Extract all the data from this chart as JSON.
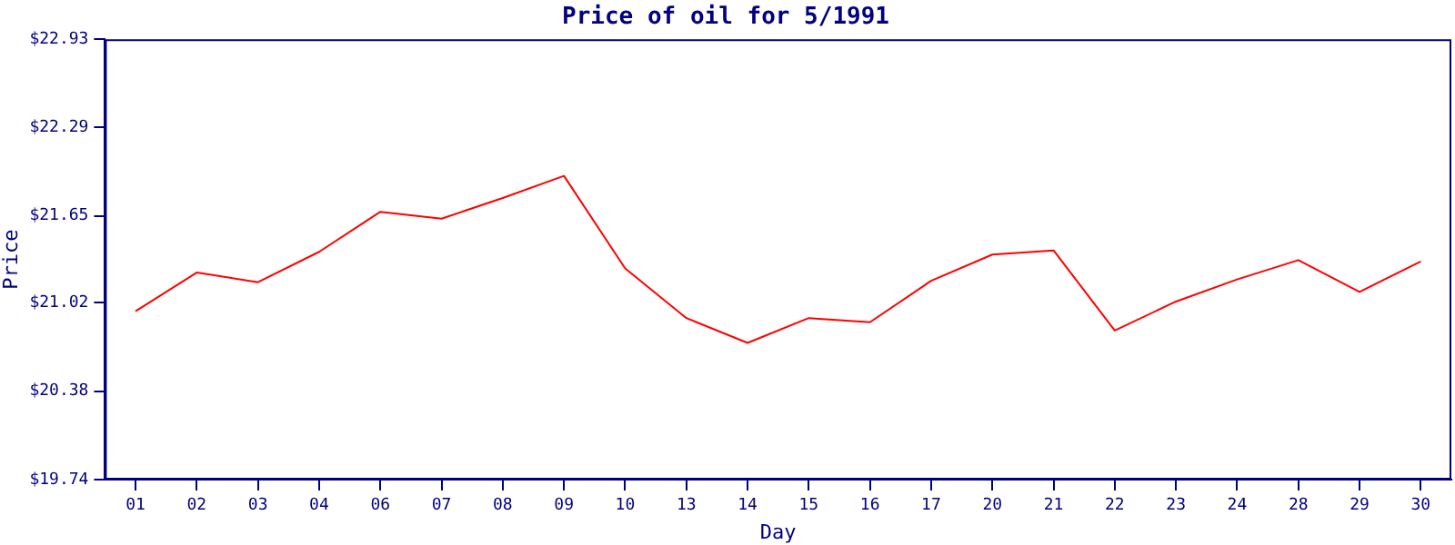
{
  "chart_data": {
    "type": "line",
    "title": "Price of oil for 5/1991",
    "xlabel": "Day",
    "ylabel": "Price",
    "categories": [
      "01",
      "02",
      "03",
      "04",
      "06",
      "07",
      "08",
      "09",
      "10",
      "13",
      "14",
      "15",
      "16",
      "17",
      "20",
      "21",
      "22",
      "23",
      "24",
      "28",
      "29",
      "30"
    ],
    "series": [
      {
        "color": "#ff0000",
        "values": [
          20.96,
          21.24,
          21.17,
          21.39,
          21.68,
          21.63,
          21.78,
          21.94,
          21.27,
          20.91,
          20.73,
          20.91,
          20.88,
          21.18,
          21.37,
          21.4,
          20.82,
          21.03,
          21.19,
          21.33,
          21.1,
          21.32
        ]
      }
    ],
    "ylim": [
      19.74,
      22.93
    ],
    "yticks": [
      {
        "value": 19.74,
        "label": "$19.74"
      },
      {
        "value": 20.38,
        "label": "$20.38"
      },
      {
        "value": 21.02,
        "label": "$21.02"
      },
      {
        "value": 21.65,
        "label": "$21.65"
      },
      {
        "value": 22.29,
        "label": "$22.29"
      },
      {
        "value": 22.93,
        "label": "$22.93"
      }
    ],
    "grid": false,
    "legend": false,
    "marker": "none",
    "line_style": "solid"
  }
}
